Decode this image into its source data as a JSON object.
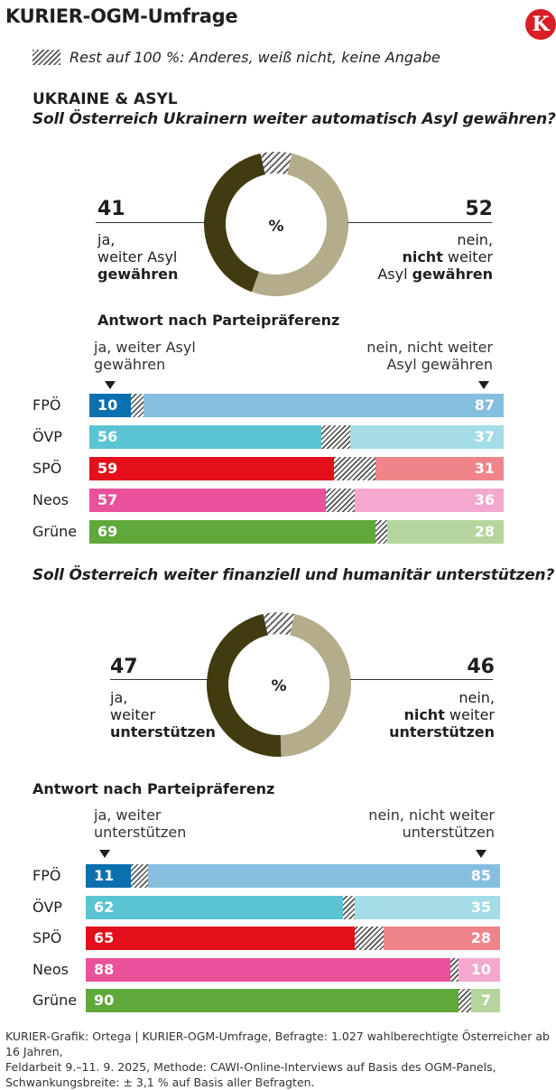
{
  "header": {
    "title": "KURIER-OGM-Umfrage",
    "logo_letter": "K",
    "legend_text": "Rest auf 100 %: Anderes, weiß nicht, keine Angabe"
  },
  "colors": {
    "yes_donut": "#413c10",
    "no_donut": "#b3ad8c",
    "rest": "hatch"
  },
  "chart_data": [
    {
      "type": "pie",
      "section": "UKRAINE & ASYL",
      "title": "Soll Österreich Ukrainern weiter automatisch Asyl gewähren?",
      "center_label": "%",
      "values": [
        41,
        52,
        7
      ],
      "labels": [
        "ja, weiter Asyl gewähren",
        "nein, nicht weiter Asyl gewähren",
        "Rest"
      ],
      "yes": {
        "value": "41",
        "line1": "ja,",
        "line2": "weiter Asyl",
        "line3": "gewähren"
      },
      "no": {
        "value": "52",
        "line1": "nein,",
        "line2a": "nicht",
        "line2b": " weiter",
        "line3a": "Asyl ",
        "line3b": "gewähren"
      }
    },
    {
      "type": "bar",
      "stacked": true,
      "orientation": "horizontal",
      "title": "Antwort nach Parteipräferenz",
      "left_label": [
        "ja, weiter Asyl",
        "gewähren"
      ],
      "right_label": [
        "nein, nicht weiter",
        "Asyl gewähren"
      ],
      "categories": [
        "FPÖ",
        "ÖVP",
        "SPÖ",
        "Neos",
        "Grüne"
      ],
      "series": [
        {
          "name": "ja, weiter Asyl gewähren",
          "values": [
            10,
            56,
            59,
            57,
            69
          ]
        },
        {
          "name": "nein, nicht weiter Asyl gewähren",
          "values": [
            87,
            37,
            31,
            36,
            28
          ]
        }
      ],
      "xlim": [
        0,
        100
      ]
    },
    {
      "type": "pie",
      "title": "Soll Österreich weiter finanziell und humanitär unterstützen?",
      "center_label": "%",
      "values": [
        47,
        46,
        7
      ],
      "labels": [
        "ja, weiter unterstützen",
        "nein, nicht weiter unterstützen",
        "Rest"
      ],
      "yes": {
        "value": "47",
        "line1": "ja,",
        "line2": "weiter",
        "line3": "unterstützen"
      },
      "no": {
        "value": "46",
        "line1": "nein,",
        "line2a": "nicht",
        "line2b": " weiter",
        "line3a": "",
        "line3b": "unterstützen"
      }
    },
    {
      "type": "bar",
      "stacked": true,
      "orientation": "horizontal",
      "title": "Antwort nach Parteipräferenz",
      "left_label": [
        "ja, weiter",
        "unterstützen"
      ],
      "right_label": [
        "nein, nicht weiter",
        "unterstützen"
      ],
      "categories": [
        "FPÖ",
        "ÖVP",
        "SPÖ",
        "Neos",
        "Grüne"
      ],
      "series": [
        {
          "name": "ja, weiter unterstützen",
          "values": [
            11,
            62,
            65,
            88,
            90
          ]
        },
        {
          "name": "nein, nicht weiter unterstützen",
          "values": [
            85,
            35,
            28,
            10,
            7
          ]
        }
      ],
      "xlim": [
        0,
        100
      ]
    }
  ],
  "party_colors": {
    "FPÖ": {
      "yes": "#0c6fae",
      "no": "#86bedf"
    },
    "ÖVP": {
      "yes": "#5bc4d3",
      "no": "#a4dde7"
    },
    "SPÖ": {
      "yes": "#e3101b",
      "no": "#ef858a"
    },
    "Neos": {
      "yes": "#e9519a",
      "no": "#f4a8cd"
    },
    "Grüne": {
      "yes": "#5fa83a",
      "no": "#b5d59d"
    }
  },
  "footer": {
    "line1": "KURIER-Grafik: Ortega | KURIER-OGM-Umfrage, Befragte: 1.027 wahlberechtigte Österreicher ab 16 Jahren,",
    "line2": "Feldarbeit 9.–11. 9. 2025, Methode: CAWI-Online-Interviews auf Basis des OGM-Panels,",
    "line3": "Schwankungsbreite: ± 3,1 % auf Basis aller Befragten."
  }
}
